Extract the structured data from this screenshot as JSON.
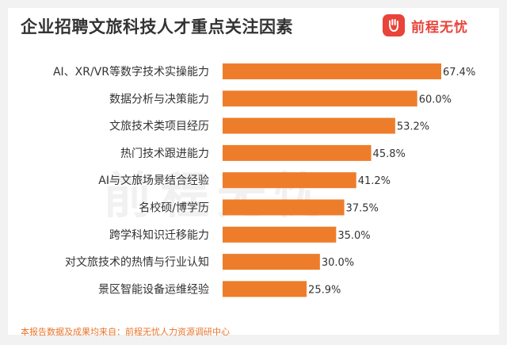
{
  "chart_data": {
    "type": "bar",
    "orientation": "horizontal",
    "title": "企业招聘文旅科技人才重点关注因素",
    "categories": [
      "AI、XR/VR等数字技术实操能力",
      "数据分析与决策能力",
      "文旅技术类项目经历",
      "热门技术跟进能力",
      "AI与文旅场景结合经验",
      "名校硕/博学历",
      "跨学科知识迁移能力",
      "对文旅技术的热情与行业认知",
      "景区智能设备运维经验"
    ],
    "values": [
      67.4,
      60.0,
      53.2,
      45.8,
      41.2,
      37.5,
      35.0,
      30.0,
      25.9
    ],
    "value_labels": [
      "67.4%",
      "60.0%",
      "53.2%",
      "45.8%",
      "41.2%",
      "37.5%",
      "35.0%",
      "30.0%",
      "25.9%"
    ],
    "unit": "%",
    "xlim": [
      0,
      67.4
    ],
    "grid": false,
    "legend": "none",
    "bar_color": "#ee7d2b"
  },
  "brand": {
    "name": "前程无忧",
    "logo_icon": "hand-logo-icon",
    "color": "#e8443a"
  },
  "watermark": "前程无忧",
  "footer": {
    "source": "本报告数据及成果均来自：前程无忧人力资源调研中心"
  }
}
